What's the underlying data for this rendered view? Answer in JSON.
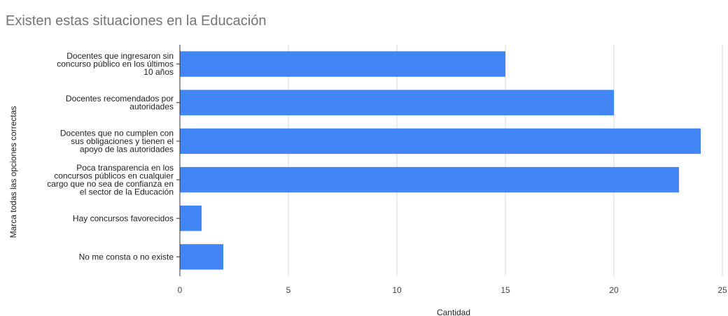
{
  "chart_data": {
    "type": "bar",
    "orientation": "horizontal",
    "title": "Existen estas situaciones en la Educación",
    "xlabel": "Cantidad",
    "ylabel": "Marca todas las opciones correctas",
    "xlim": [
      0,
      25
    ],
    "xticks": [
      "0",
      "5",
      "10",
      "15",
      "20",
      "25"
    ],
    "grid": true,
    "categories": [
      [
        "Docentes que ingresaron sin",
        "concurso público en los últimos",
        "10 años"
      ],
      [
        "Docentes recomendados por",
        "autoridades"
      ],
      [
        "Docentes que no cumplen con",
        "sus obligaciones y tienen el",
        "apoyo de las autoridades"
      ],
      [
        "Poca transparencia en los",
        "concursos públicos en cualquier",
        "cargo que no sea de confianza en",
        "el sector de la Educación"
      ],
      [
        "Hay concursos favorecidos"
      ],
      [
        "No me consta o no existe"
      ]
    ],
    "values": [
      15,
      20,
      24,
      23,
      1,
      2
    ],
    "bar_color": "#4285f4"
  }
}
